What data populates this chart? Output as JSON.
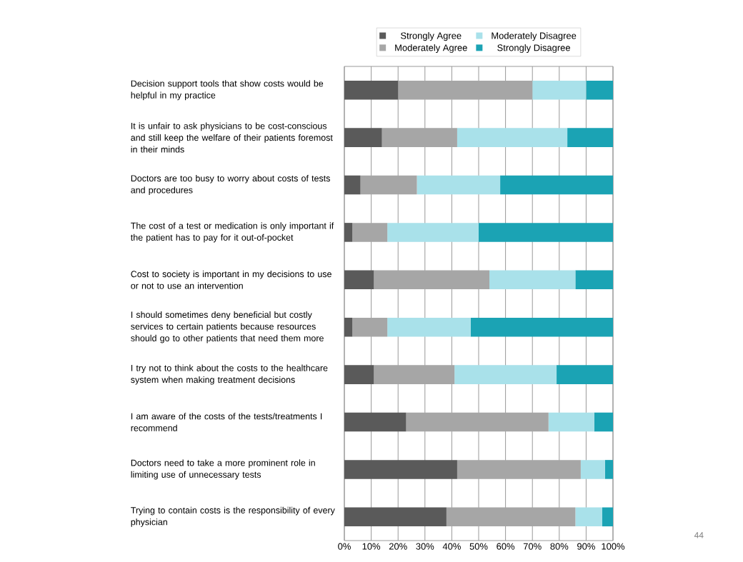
{
  "chart_data": {
    "type": "bar",
    "orientation": "horizontal",
    "stacked": true,
    "categories": [
      "Decision support tools that show costs would be helpful in my practice",
      "It is unfair to ask physicians to be cost-conscious and still keep the welfare of their patients foremost in their minds",
      "Doctors are too busy to worry about costs of tests and procedures",
      "The cost of a test or medication is only important if the patient has to pay for it out-of-pocket",
      "Cost to society is important in my decisions to use or not to use an intervention",
      "I should sometimes deny beneficial but costly services to certain patients because resources should go to other patients that need them more",
      "I try not to think about the costs to the healthcare system when making treatment decisions",
      "I am aware of the costs of the tests/treatments I recommend",
      "Doctors need to take a more prominent role in limiting use of unnecessary tests",
      "Trying to contain costs is the responsibility of every physician"
    ],
    "series": [
      {
        "name": "Strongly Agree",
        "color": "#5a5a5a",
        "values": [
          20,
          14,
          6,
          3,
          11,
          3,
          11,
          23,
          42,
          38
        ]
      },
      {
        "name": "Moderately Agree",
        "color": "#a6a6a6",
        "values": [
          50,
          28,
          21,
          13,
          43,
          13,
          30,
          53,
          46,
          48
        ]
      },
      {
        "name": "Moderately Disagree",
        "color": "#a9e1ea",
        "values": [
          20,
          41,
          31,
          34,
          32,
          31,
          38,
          17,
          9,
          10
        ]
      },
      {
        "name": "Strongly Disagree",
        "color": "#1ba3b4",
        "values": [
          10,
          17,
          42,
          50,
          14,
          53,
          21,
          7,
          3,
          4
        ]
      }
    ],
    "xlim": [
      0,
      100
    ],
    "xticks": [
      {
        "value": 0,
        "label": "0%"
      },
      {
        "value": 10,
        "label": "10%"
      },
      {
        "value": 20,
        "label": "20%"
      },
      {
        "value": 30,
        "label": "30%"
      },
      {
        "value": 40,
        "label": "40%"
      },
      {
        "value": 50,
        "label": "50%"
      },
      {
        "value": 60,
        "label": "60%"
      },
      {
        "value": 70,
        "label": "70%"
      },
      {
        "value": 80,
        "label": "80%"
      },
      {
        "value": 90,
        "label": "90%"
      },
      {
        "value": 100,
        "label": "100%"
      }
    ],
    "grid": "x",
    "legend": "top",
    "annotations": [
      "44"
    ]
  }
}
